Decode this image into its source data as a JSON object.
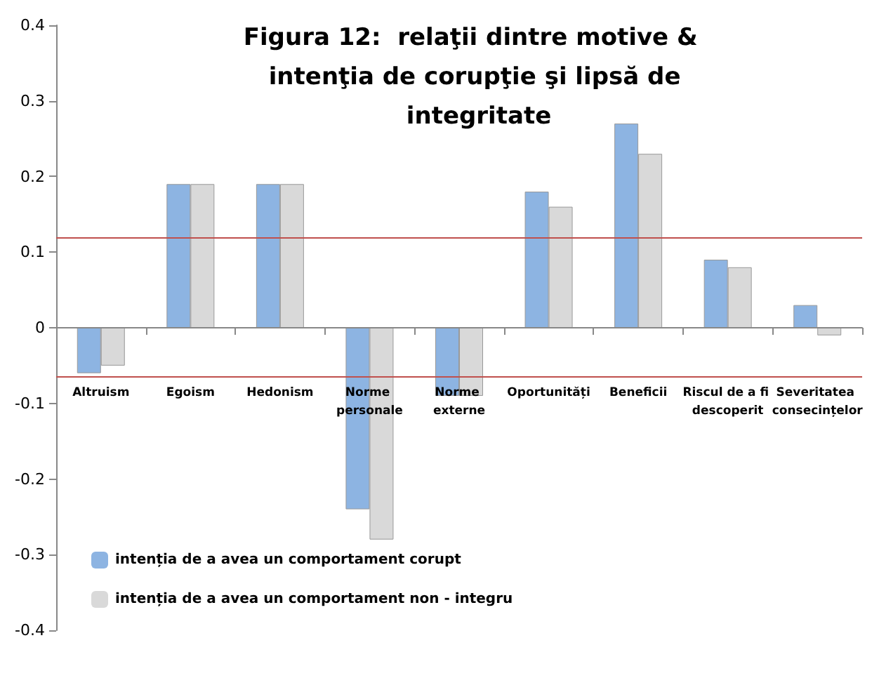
{
  "chart_data": {
    "type": "bar",
    "title": "Figura 12:  relaţii dintre motive &  intenţia de corupţie şi lipsă de integritate",
    "categories": [
      "Altruism",
      "Egoism",
      "Hedonism",
      "Norme personale",
      "Norme externe",
      "Oportunități",
      "Beneficii",
      "Riscul de a fi descoperit",
      "Severitatea consecințelor"
    ],
    "series": [
      {
        "name": "intenția de a avea un comportament corupt",
        "color": "#8db4e2",
        "values": [
          -0.06,
          0.19,
          0.19,
          -0.24,
          -0.09,
          0.18,
          0.27,
          0.09,
          0.03
        ]
      },
      {
        "name": "intenția de a avea un comportament non - integru",
        "color": "#d9d9d9",
        "values": [
          -0.05,
          0.19,
          0.19,
          -0.28,
          -0.09,
          0.16,
          0.23,
          0.08,
          -0.01
        ]
      }
    ],
    "ylim": [
      -0.4,
      0.4
    ],
    "yticks": [
      -0.4,
      -0.3,
      -0.2,
      -0.1,
      0,
      0.1,
      0.2,
      0.3,
      0.4
    ],
    "ref_lines": [
      {
        "axis": "y",
        "value": 0.12,
        "color": "#c0504d"
      },
      {
        "axis": "y",
        "value": -0.065,
        "color": "#c0504d"
      }
    ],
    "legend": "bottom left"
  }
}
